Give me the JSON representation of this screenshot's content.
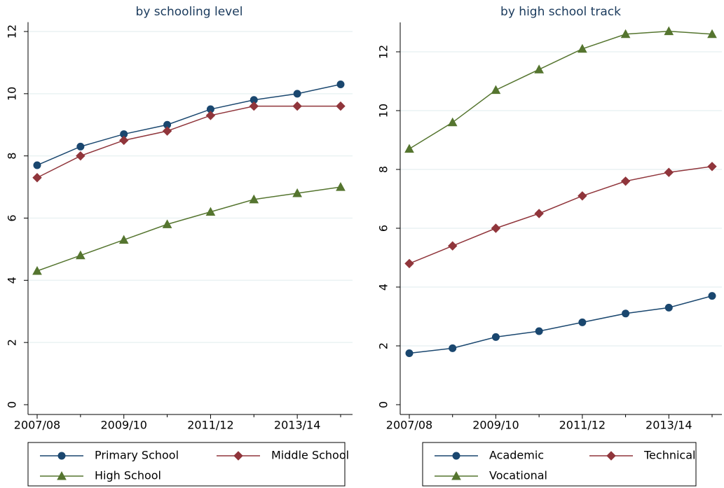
{
  "chart_data": [
    {
      "type": "line",
      "title": "by schooling level",
      "categories": [
        "2007/08",
        null,
        "2009/10",
        null,
        "2011/12",
        null,
        "2013/14",
        null
      ],
      "series": [
        {
          "name": "Primary School",
          "color": "#1a476f",
          "marker": "circle",
          "values": [
            7.7,
            8.3,
            8.7,
            9.0,
            9.5,
            9.8,
            10.0,
            10.3
          ]
        },
        {
          "name": "Middle School",
          "color": "#90353b",
          "marker": "diamond",
          "values": [
            7.3,
            8.0,
            8.5,
            8.8,
            9.3,
            9.6,
            9.6,
            9.6
          ]
        },
        {
          "name": "High School",
          "color": "#55752f",
          "marker": "triangle",
          "values": [
            4.3,
            4.8,
            5.3,
            5.8,
            6.2,
            6.6,
            6.8,
            7.0
          ]
        }
      ],
      "ylim": [
        0,
        12.3
      ],
      "yticks": [
        0,
        2,
        4,
        6,
        8,
        10,
        12
      ],
      "grid": true,
      "legend": "bottom"
    },
    {
      "type": "line",
      "title": "by high school track",
      "categories": [
        "2007/08",
        null,
        "2009/10",
        null,
        "2011/12",
        null,
        "2013/14",
        null
      ],
      "series": [
        {
          "name": "Academic",
          "color": "#1a476f",
          "marker": "circle",
          "values": [
            1.75,
            1.92,
            2.3,
            2.5,
            2.8,
            3.1,
            3.3,
            3.7
          ]
        },
        {
          "name": "Technical",
          "color": "#90353b",
          "marker": "diamond",
          "values": [
            4.8,
            5.4,
            6.0,
            6.5,
            7.1,
            7.6,
            7.9,
            8.1
          ]
        },
        {
          "name": "Vocational",
          "color": "#55752f",
          "marker": "triangle",
          "values": [
            8.7,
            9.6,
            10.7,
            11.4,
            12.1,
            12.6,
            12.7,
            12.6
          ]
        }
      ],
      "ylim": [
        0,
        13
      ],
      "yticks": [
        0,
        2,
        4,
        6,
        8,
        10,
        12
      ],
      "grid": true,
      "legend": "bottom"
    }
  ]
}
